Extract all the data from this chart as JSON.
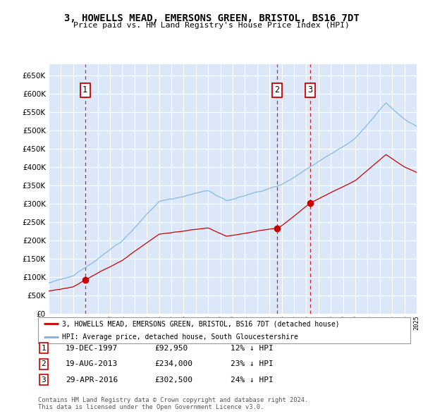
{
  "title": "3, HOWELLS MEAD, EMERSONS GREEN, BRISTOL, BS16 7DT",
  "subtitle": "Price paid vs. HM Land Registry's House Price Index (HPI)",
  "ylim": [
    0,
    680000
  ],
  "yticks": [
    0,
    50000,
    100000,
    150000,
    200000,
    250000,
    300000,
    350000,
    400000,
    450000,
    500000,
    550000,
    600000,
    650000
  ],
  "ytick_labels": [
    "£0",
    "£50K",
    "£100K",
    "£150K",
    "£200K",
    "£250K",
    "£300K",
    "£350K",
    "£400K",
    "£450K",
    "£500K",
    "£550K",
    "£600K",
    "£650K"
  ],
  "plot_bg_color": "#dce8f8",
  "grid_color": "#ffffff",
  "hpi_color": "#7db4dc",
  "price_color": "#cc0000",
  "marker_color": "#cc0000",
  "dashed_line_color": "#cc0000",
  "transactions": [
    {
      "label": "1",
      "year": 1997.97,
      "price": 92950
    },
    {
      "label": "2",
      "year": 2013.63,
      "price": 234000
    },
    {
      "label": "3",
      "year": 2016.33,
      "price": 302500
    }
  ],
  "legend_label_red": "3, HOWELLS MEAD, EMERSONS GREEN, BRISTOL, BS16 7DT (detached house)",
  "legend_label_blue": "HPI: Average price, detached house, South Gloucestershire",
  "footer": "Contains HM Land Registry data © Crown copyright and database right 2024.\nThis data is licensed under the Open Government Licence v3.0.",
  "table_rows": [
    {
      "label": "1",
      "date": "19-DEC-1997",
      "price": "£92,950",
      "pct": "12% ↓ HPI"
    },
    {
      "label": "2",
      "date": "19-AUG-2013",
      "price": "£234,000",
      "pct": "23% ↓ HPI"
    },
    {
      "label": "3",
      "date": "29-APR-2016",
      "price": "£302,500",
      "pct": "24% ↓ HPI"
    }
  ],
  "x_start_year": 1995,
  "x_end_year": 2025
}
